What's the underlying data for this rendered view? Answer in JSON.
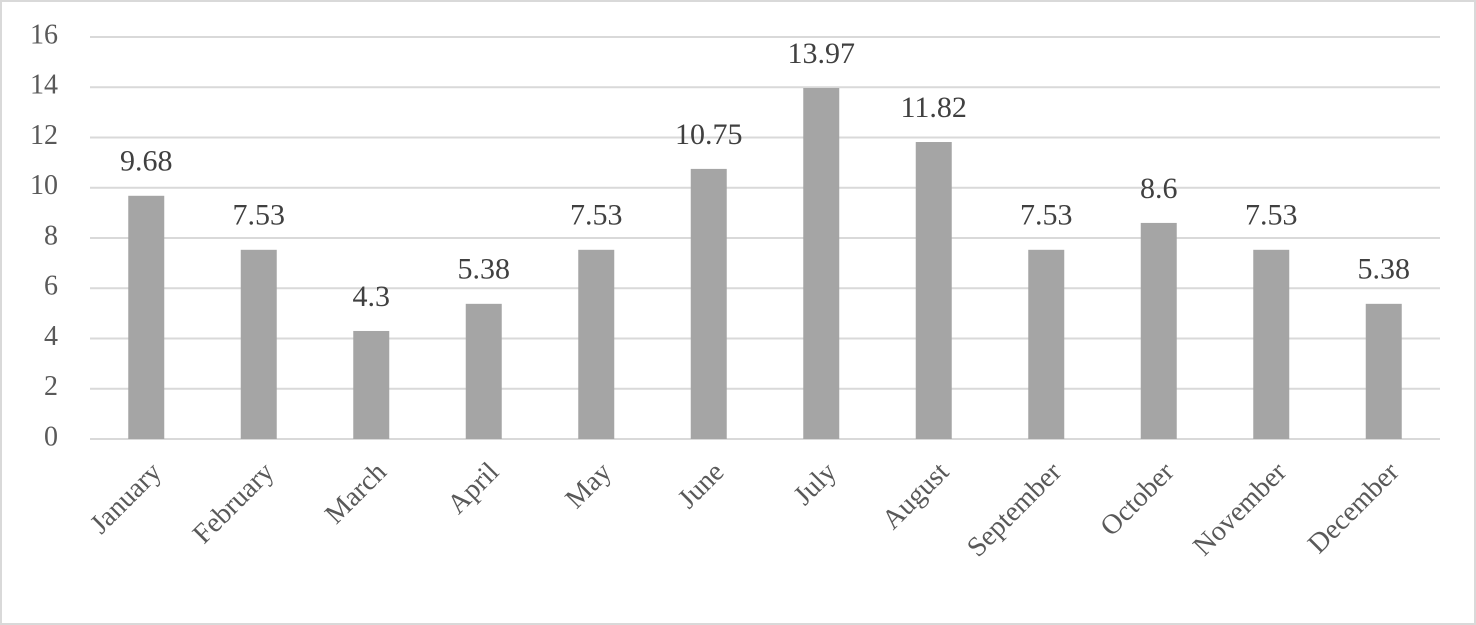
{
  "chart_data": {
    "type": "bar",
    "categories": [
      "January",
      "February",
      "March",
      "April",
      "May",
      "June",
      "July",
      "August",
      "September",
      "October",
      "November",
      "December"
    ],
    "values": [
      9.68,
      7.53,
      4.3,
      5.38,
      7.53,
      10.75,
      13.97,
      11.82,
      7.53,
      8.6,
      7.53,
      5.38
    ],
    "color": "#a5a5a5",
    "ylim": [
      0,
      16
    ],
    "yticks": [
      0,
      2,
      4,
      6,
      8,
      10,
      12,
      14,
      16
    ],
    "grid": true
  }
}
